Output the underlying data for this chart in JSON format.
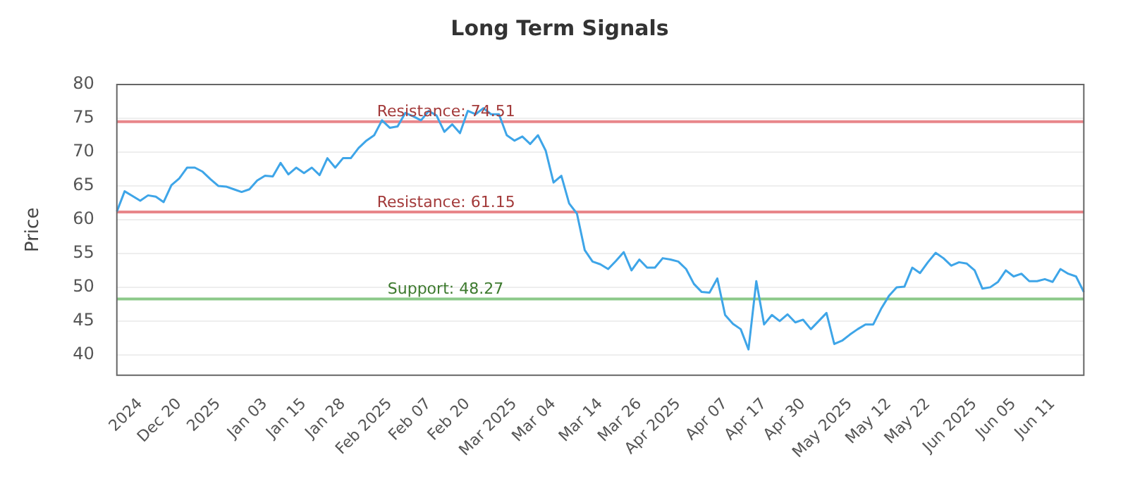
{
  "chart_data": {
    "type": "line",
    "title": "Long Term Signals",
    "ylabel": "Price",
    "categories": [
      null,
      null,
      null,
      "2024",
      null,
      null,
      null,
      null,
      "Dec 20",
      null,
      null,
      null,
      null,
      "2025",
      null,
      null,
      null,
      null,
      null,
      "Jan 03",
      null,
      null,
      null,
      null,
      "Jan 15",
      null,
      null,
      null,
      null,
      "Jan 28",
      null,
      null,
      null,
      null,
      null,
      "Feb 2025",
      null,
      null,
      null,
      null,
      "Feb 07",
      null,
      null,
      null,
      null,
      "Feb 20",
      null,
      null,
      null,
      null,
      null,
      "Mar 2025",
      null,
      null,
      null,
      null,
      "Mar 04",
      null,
      null,
      null,
      null,
      null,
      "Mar 14",
      null,
      null,
      null,
      null,
      "Mar 26",
      null,
      null,
      null,
      null,
      "Apr 2025",
      null,
      null,
      null,
      null,
      null,
      "Apr 07",
      null,
      null,
      null,
      null,
      "Apr 17",
      null,
      null,
      null,
      null,
      "Apr 30",
      null,
      null,
      null,
      null,
      null,
      "May 2025",
      null,
      null,
      null,
      null,
      "May 12",
      null,
      null,
      null,
      null,
      "May 22",
      null,
      null,
      null,
      null,
      null,
      "Jun 2025",
      null,
      null,
      null,
      null,
      "Jun 05",
      null,
      null,
      null,
      null,
      "Jun 11",
      null,
      null,
      null,
      null
    ],
    "series": [
      {
        "color": "#3ea5e8",
        "values": [
          61.2,
          64.2,
          63.5,
          62.8,
          63.6,
          63.4,
          62.6,
          65.1,
          66.1,
          67.7,
          67.7,
          67.1,
          66.0,
          65.0,
          64.9,
          64.5,
          64.1,
          64.5,
          65.8,
          66.5,
          66.4,
          68.4,
          66.7,
          67.7,
          66.9,
          67.7,
          66.6,
          69.1,
          67.7,
          69.1,
          69.1,
          70.6,
          71.7,
          72.5,
          74.7,
          73.6,
          73.8,
          75.8,
          75.3,
          74.7,
          76.1,
          75.4,
          73.0,
          74.1,
          72.8,
          76.1,
          75.6,
          76.5,
          75.6,
          75.6,
          72.5,
          71.7,
          72.3,
          71.2,
          72.5,
          70.2,
          65.5,
          66.5,
          62.4,
          60.9,
          55.5,
          53.8,
          53.4,
          52.7,
          53.9,
          55.2,
          52.5,
          54.1,
          52.9,
          52.9,
          54.3,
          54.1,
          53.8,
          52.7,
          50.5,
          49.3,
          49.2,
          51.3,
          45.9,
          44.6,
          43.8,
          40.8,
          50.9,
          44.5,
          45.9,
          45.0,
          46.0,
          44.8,
          45.2,
          43.8,
          45.0,
          46.2,
          41.6,
          42.1,
          43.0,
          43.8,
          44.5,
          44.5,
          46.8,
          48.7,
          50.0,
          50.1,
          52.9,
          52.1,
          53.7,
          55.1,
          54.3,
          53.2,
          53.7,
          53.5,
          52.5,
          49.8,
          50.0,
          50.8,
          52.5,
          51.6,
          52.0,
          50.9,
          50.9,
          51.2,
          50.8,
          52.7,
          52.0,
          51.6,
          49.3
        ]
      }
    ],
    "ylim": [
      37,
      80
    ],
    "yticks": [
      40,
      45,
      50,
      55,
      60,
      65,
      70,
      75,
      80
    ],
    "grid": "y",
    "marker": "none",
    "line_style": "solid",
    "legend": false,
    "ref_lines": [
      {
        "axis": "y",
        "value": 74.51,
        "label": "Resistance: 74.51",
        "color": "#e8868a"
      },
      {
        "axis": "y",
        "value": 61.15,
        "label": "Resistance: 61.15",
        "color": "#e8868a"
      },
      {
        "axis": "y",
        "value": 48.27,
        "label": "Support: 48.27",
        "color": "#8cc98a"
      }
    ]
  }
}
